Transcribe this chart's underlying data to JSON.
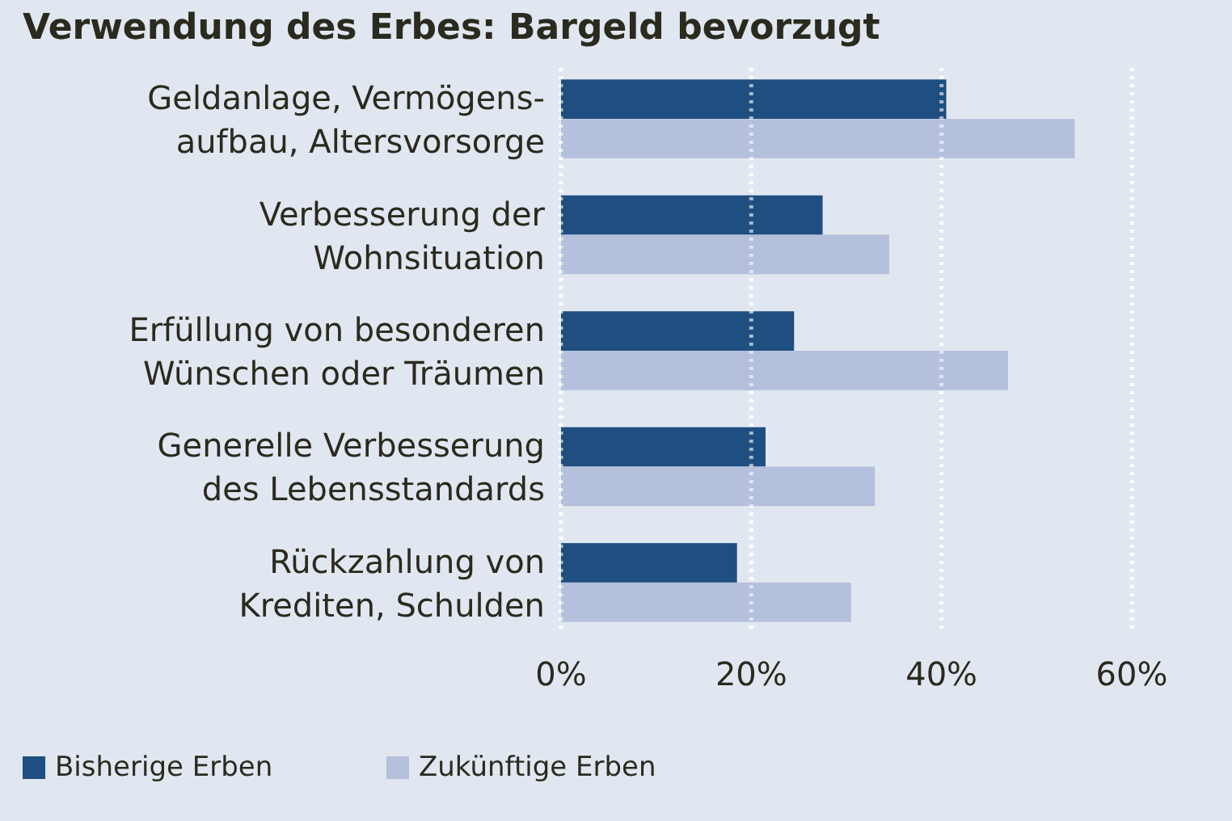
{
  "chart_data": {
    "type": "bar",
    "orientation": "horizontal",
    "title": "Verwendung des Erbes: Bargeld bevorzugt",
    "categories": [
      "Geldanlage, Vermögens-\naufbau, Altersvorsorge",
      "Verbesserung der\nWohnsituation",
      "Erfüllung von besonderen\nWünschen oder Träumen",
      "Generelle Verbesserung\ndes Lebensstandards",
      "Rückzahlung von\nKrediten, Schulden"
    ],
    "series": [
      {
        "name": "Bisherige Erben",
        "color": "#1f4e80",
        "values": [
          40.5,
          27.5,
          24.5,
          21.5,
          18.5
        ]
      },
      {
        "name": "Zukünftige Erben",
        "color": "#b4c0dc",
        "values": [
          54,
          34.5,
          47,
          33,
          30.5
        ]
      }
    ],
    "xlim": [
      0,
      60
    ],
    "xticks": [
      {
        "value": 0,
        "label": "0%"
      },
      {
        "value": 20,
        "label": "20%"
      },
      {
        "value": 40,
        "label": "40%"
      },
      {
        "value": 60,
        "label": "60%"
      }
    ],
    "grid": "x",
    "legend": "bottom"
  }
}
